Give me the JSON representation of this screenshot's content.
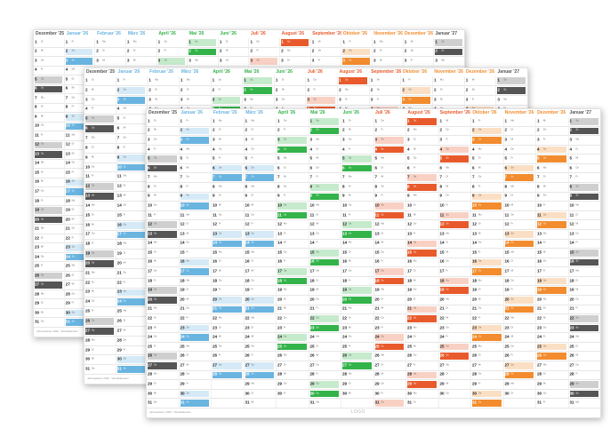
{
  "months": [
    {
      "label": "Dezember '25",
      "color": "#555555",
      "days": 31,
      "start": 1
    },
    {
      "label": "Januar '26",
      "color": "#6ab4e0",
      "days": 31,
      "start": 4
    },
    {
      "label": "Februar '26",
      "color": "#6ab4e0",
      "days": 28,
      "start": 0
    },
    {
      "label": "März '26",
      "color": "#6ab4e0",
      "days": 31,
      "start": 0
    },
    {
      "label": "April '26",
      "color": "#33b34a",
      "days": 30,
      "start": 3
    },
    {
      "label": "Mai '26",
      "color": "#33b34a",
      "days": 31,
      "start": 5
    },
    {
      "label": "Juni '26",
      "color": "#33b34a",
      "days": 30,
      "start": 1
    },
    {
      "label": "Juli '26",
      "color": "#e85a2c",
      "days": 31,
      "start": 3
    },
    {
      "label": "August '26",
      "color": "#e85a2c",
      "days": 31,
      "start": 6
    },
    {
      "label": "September '26",
      "color": "#e85a2c",
      "days": 30,
      "start": 2
    },
    {
      "label": "Oktober '26",
      "color": "#f28c2e",
      "days": 31,
      "start": 4
    },
    {
      "label": "November '26",
      "color": "#f28c2e",
      "days": 30,
      "start": 0
    },
    {
      "label": "Dezember '26",
      "color": "#f28c2e",
      "days": 31,
      "start": 2
    },
    {
      "label": "Januar '27",
      "color": "#555555",
      "days": 31,
      "start": 5
    }
  ],
  "weekdays": [
    "Mo",
    "Di",
    "Mi",
    "Do",
    "Fr",
    "Sa",
    "So"
  ],
  "sheets": [
    {
      "id": "back",
      "first": 0,
      "count": 14,
      "footer": "Jahresplaner 2026 · Wandkalender"
    },
    {
      "id": "mid",
      "first": 0,
      "count": 14,
      "footer": "Jahresplaner 2026 · Wandkalender"
    },
    {
      "id": "front",
      "first": 0,
      "count": 14,
      "footer": "Jahresplaner 2026 · Wandkalender"
    }
  ],
  "logo": "LOGO"
}
